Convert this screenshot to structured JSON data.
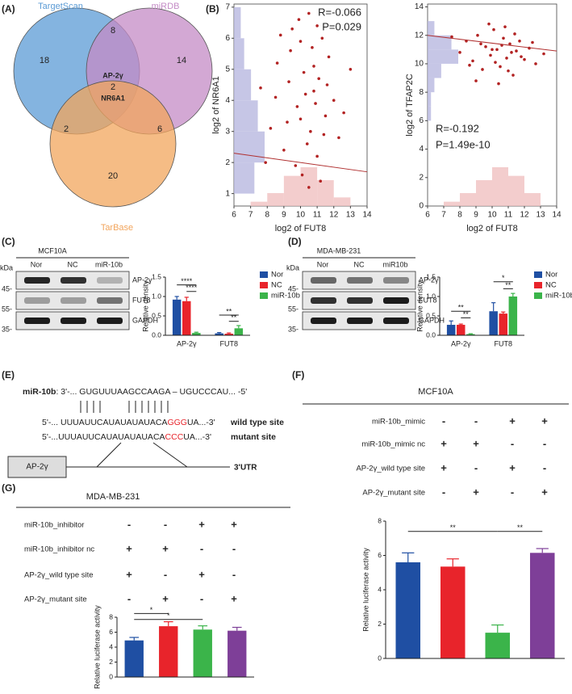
{
  "panel_labels": [
    "(A)",
    "(B)",
    "(C)",
    "(D)",
    "(E)",
    "(F)",
    "(G)"
  ],
  "venn": {
    "sets": [
      {
        "name": "TargetScan",
        "color": "#5b9bd5"
      },
      {
        "name": "miRDB",
        "color": "#c48bc6"
      },
      {
        "name": "TarBase",
        "color": "#f2a55c"
      }
    ],
    "counts": [
      18,
      8,
      14,
      2,
      2,
      6,
      20
    ],
    "center_labels": [
      "AP-2γ",
      "NR6A1"
    ]
  },
  "blots": [
    {
      "cell_line": "MCF10A",
      "lanes": [
        "Nor",
        "NC",
        "miR-10b"
      ],
      "proteins": [
        "AP-2γ",
        "FUT8",
        "GAPDH"
      ],
      "kda_title": "kDa",
      "markers": [
        "45-",
        "55-",
        "35-"
      ]
    },
    {
      "cell_line": "MDA-MB-231",
      "lanes": [
        "Nor",
        "NC",
        "miR10b"
      ],
      "proteins": [
        "AP-2γ",
        "FUT8",
        "GAPDH"
      ],
      "kda_title": "kDa",
      "markers": [
        "45-",
        "55-",
        "35-"
      ]
    }
  ],
  "sequence": {
    "mirna_label": "miR-10b",
    "mirna": ": 3'-... GUGUUUAAGCCAAGA – UGUCCCAU... -5'",
    "wild": {
      "pre": "5'-... UUUAUUCAUAUAUAUACA",
      "site": "GGG",
      "post": "UA...-3'",
      "label": "wild type site"
    },
    "mutant": {
      "pre": "5'-...UUUAUUCAUAUAUAUACA",
      "site": "CCC",
      "post": "UA...-3'",
      "label": "mutant site"
    },
    "gene": "AP-2γ",
    "utr": "3'UTR"
  },
  "tables": [
    {
      "title": "MCF10A",
      "rows": [
        {
          "label": "miR-10b_mimic",
          "cells": [
            "-",
            "-",
            "+",
            "+"
          ]
        },
        {
          "label": "miR-10b_mimic nc",
          "cells": [
            "+",
            "+",
            "-",
            "-"
          ]
        },
        {
          "label": "AP-2γ_wild type site",
          "cells": [
            "+",
            "-",
            "+",
            "-"
          ]
        },
        {
          "label": "AP-2γ_mutant site",
          "cells": [
            "-",
            "+",
            "-",
            "+"
          ]
        }
      ]
    },
    {
      "title": "MDA-MB-231",
      "rows": [
        {
          "label": "miR-10b_inhibitor",
          "cells": [
            "-",
            "-",
            "+",
            "+"
          ]
        },
        {
          "label": "miR-10b_inhibitor nc",
          "cells": [
            "+",
            "+",
            "-",
            "-"
          ]
        },
        {
          "label": "AP-2γ_wild type site",
          "cells": [
            "+",
            "-",
            "+",
            "-"
          ]
        },
        {
          "label": "AP-2γ_mutant site",
          "cells": [
            "-",
            "+",
            "-",
            "+"
          ]
        }
      ]
    }
  ],
  "chart_data": [
    {
      "type": "scatter",
      "color": "#b22222",
      "x": [
        8.2,
        8.6,
        9.0,
        9.3,
        9.5,
        9.8,
        10.0,
        10.1,
        10.3,
        10.5,
        10.6,
        10.8,
        11.0,
        11.1,
        11.3,
        11.5,
        11.7,
        12.0,
        12.3,
        7.6,
        7.9,
        8.8,
        9.2,
        9.7,
        10.2,
        10.4,
        10.7,
        10.9,
        11.2,
        11.6,
        12.6,
        13.0,
        9.9,
        10.5,
        11.4,
        8.5,
        10.0,
        11.0,
        9.4,
        10.8
      ],
      "values": [
        3.1,
        5.2,
        2.4,
        4.6,
        6.3,
        3.8,
        5.9,
        1.6,
        4.2,
        6.8,
        3.0,
        5.1,
        2.2,
        4.7,
        6.0,
        3.5,
        5.4,
        4.0,
        2.8,
        4.4,
        2.0,
        6.1,
        3.3,
        1.9,
        4.9,
        2.6,
        5.7,
        3.9,
        1.4,
        4.5,
        3.6,
        5.0,
        6.6,
        1.2,
        2.9,
        4.1,
        3.4,
        6.4,
        5.6,
        4.3
      ],
      "xlim": [
        6,
        14
      ],
      "ylim": [
        0.6,
        7.1
      ],
      "xticks": [
        6,
        7,
        8,
        9,
        10,
        11,
        12,
        13,
        14
      ],
      "yticks": [
        1,
        2,
        3,
        4,
        5,
        6,
        7
      ],
      "xlabel": "log2 of FUT8",
      "ylabel": "log2 of NR6A1",
      "annotations": [
        "R=-0.066",
        "P=0.029"
      ],
      "trend": {
        "x": [
          6,
          14
        ],
        "values": [
          2.3,
          1.7
        ],
        "color": "#b03030"
      },
      "y_hist": {
        "bins": [
          1,
          2,
          3,
          4,
          5,
          6,
          7
        ],
        "counts": [
          6,
          9,
          7,
          5,
          3,
          2
        ],
        "color": "#b8b8e0"
      },
      "x_hist": {
        "bins": [
          7,
          8,
          9,
          10,
          11,
          12,
          13
        ],
        "counts": [
          1,
          3,
          7,
          9,
          6,
          2
        ],
        "color": "#f0c0c0"
      }
    },
    {
      "type": "scatter",
      "color": "#b22222",
      "x": [
        8.0,
        8.4,
        8.8,
        9.1,
        9.4,
        9.6,
        9.9,
        10.1,
        10.3,
        10.5,
        10.7,
        10.9,
        11.1,
        11.3,
        11.5,
        11.7,
        12.0,
        12.3,
        12.7,
        13.2,
        7.5,
        9.0,
        9.8,
        10.2,
        10.6,
        11.0,
        11.4,
        11.8,
        12.5,
        10.4,
        9.3,
        10.8,
        11.2,
        8.6,
        10.0
      ],
      "values": [
        10.8,
        11.6,
        10.2,
        12.0,
        9.6,
        11.2,
        10.6,
        12.4,
        11.0,
        9.8,
        11.8,
        10.4,
        11.4,
        9.2,
        10.9,
        11.6,
        10.3,
        11.1,
        10.0,
        10.7,
        11.9,
        8.8,
        12.8,
        10.1,
        11.3,
        9.5,
        12.1,
        10.5,
        11.5,
        8.6,
        11.4,
        12.6,
        10.8,
        9.9,
        11.0
      ],
      "xlim": [
        6,
        14
      ],
      "ylim": [
        0,
        14.2
      ],
      "xticks": [
        6,
        7,
        8,
        9,
        10,
        11,
        12,
        13,
        14
      ],
      "yticks": [
        0,
        2,
        4,
        6,
        8,
        10,
        12,
        14
      ],
      "xlabel": "log2 of FUT8",
      "ylabel": "log2 of TFAP2C",
      "annotations": [
        "R=-0.192",
        "P=1.49e-10"
      ],
      "trend": {
        "x": [
          6,
          14
        ],
        "values": [
          12.0,
          10.9
        ],
        "color": "#b03030"
      },
      "y_hist": {
        "bins": [
          6,
          7,
          8,
          9,
          10,
          11,
          12,
          13
        ],
        "counts": [
          1,
          1,
          2,
          4,
          9,
          7,
          2
        ],
        "color": "#b8b8e0"
      },
      "x_hist": {
        "bins": [
          7,
          8,
          9,
          10,
          11,
          12,
          13
        ],
        "counts": [
          1,
          3,
          6,
          9,
          7,
          3
        ],
        "color": "#f0c0c0"
      }
    },
    {
      "type": "bar",
      "categories": [
        "AP-2γ",
        "FUT8"
      ],
      "series": [
        {
          "name": "Nor",
          "color": "#1f4fa3",
          "values": [
            0.92,
            0.05
          ],
          "errors": [
            0.08,
            0.02
          ]
        },
        {
          "name": "NC",
          "color": "#e8242b",
          "values": [
            0.88,
            0.04
          ],
          "errors": [
            0.1,
            0.02
          ]
        },
        {
          "name": "miR-10b",
          "color": "#3bb44a",
          "values": [
            0.06,
            0.18
          ],
          "errors": [
            0.02,
            0.07
          ]
        }
      ],
      "ylim": [
        0,
        1.5
      ],
      "yticks": [
        {
          "value": 0,
          "label": "0.0"
        },
        0.5,
        {
          "value": 1,
          "label": "1.0"
        },
        1.5
      ],
      "ylabel": "Relative density",
      "significance": [
        "****",
        "****",
        "**",
        "**"
      ]
    },
    {
      "type": "bar",
      "categories": [
        "AP-2γ",
        "FUT8"
      ],
      "series": [
        {
          "name": "Nor",
          "color": "#1f4fa3",
          "values": [
            0.27,
            0.62
          ],
          "errors": [
            0.1,
            0.22
          ]
        },
        {
          "name": "NC",
          "color": "#e8242b",
          "values": [
            0.27,
            0.56
          ],
          "errors": [
            0.02,
            0.04
          ]
        },
        {
          "name": "miR-10b",
          "color": "#3bb44a",
          "values": [
            0.03,
            1.0
          ],
          "errors": [
            0.01,
            0.08
          ]
        }
      ],
      "ylim": [
        0,
        1.5
      ],
      "yticks": [
        {
          "value": 0,
          "label": "0.0"
        },
        0.5,
        {
          "value": 1,
          "label": "1.0"
        },
        1.5
      ],
      "ylabel": "Relative density",
      "significance": [
        "**",
        "**",
        "*",
        "**"
      ]
    },
    {
      "type": "bar",
      "values": [
        5.6,
        5.35,
        1.5,
        6.15
      ],
      "errors": [
        0.55,
        0.45,
        0.45,
        0.25
      ],
      "colors": [
        "#1f4fa3",
        "#e8242b",
        "#3bb44a",
        "#7e3f98"
      ],
      "ylim": [
        0,
        8
      ],
      "yticks": [
        0,
        2,
        4,
        6,
        8
      ],
      "ylabel": "Relative luciferase activity",
      "significance": [
        "**",
        "**"
      ]
    },
    {
      "type": "bar",
      "values": [
        4.9,
        6.8,
        6.35,
        6.2
      ],
      "errors": [
        0.4,
        0.6,
        0.5,
        0.45
      ],
      "colors": [
        "#1f4fa3",
        "#e8242b",
        "#3bb44a",
        "#7e3f98"
      ],
      "ylim": [
        0,
        8
      ],
      "yticks": [
        0,
        2,
        4,
        6,
        8
      ],
      "ylabel": "Relative luciferase activity",
      "significance": [
        "*",
        "*"
      ]
    }
  ]
}
